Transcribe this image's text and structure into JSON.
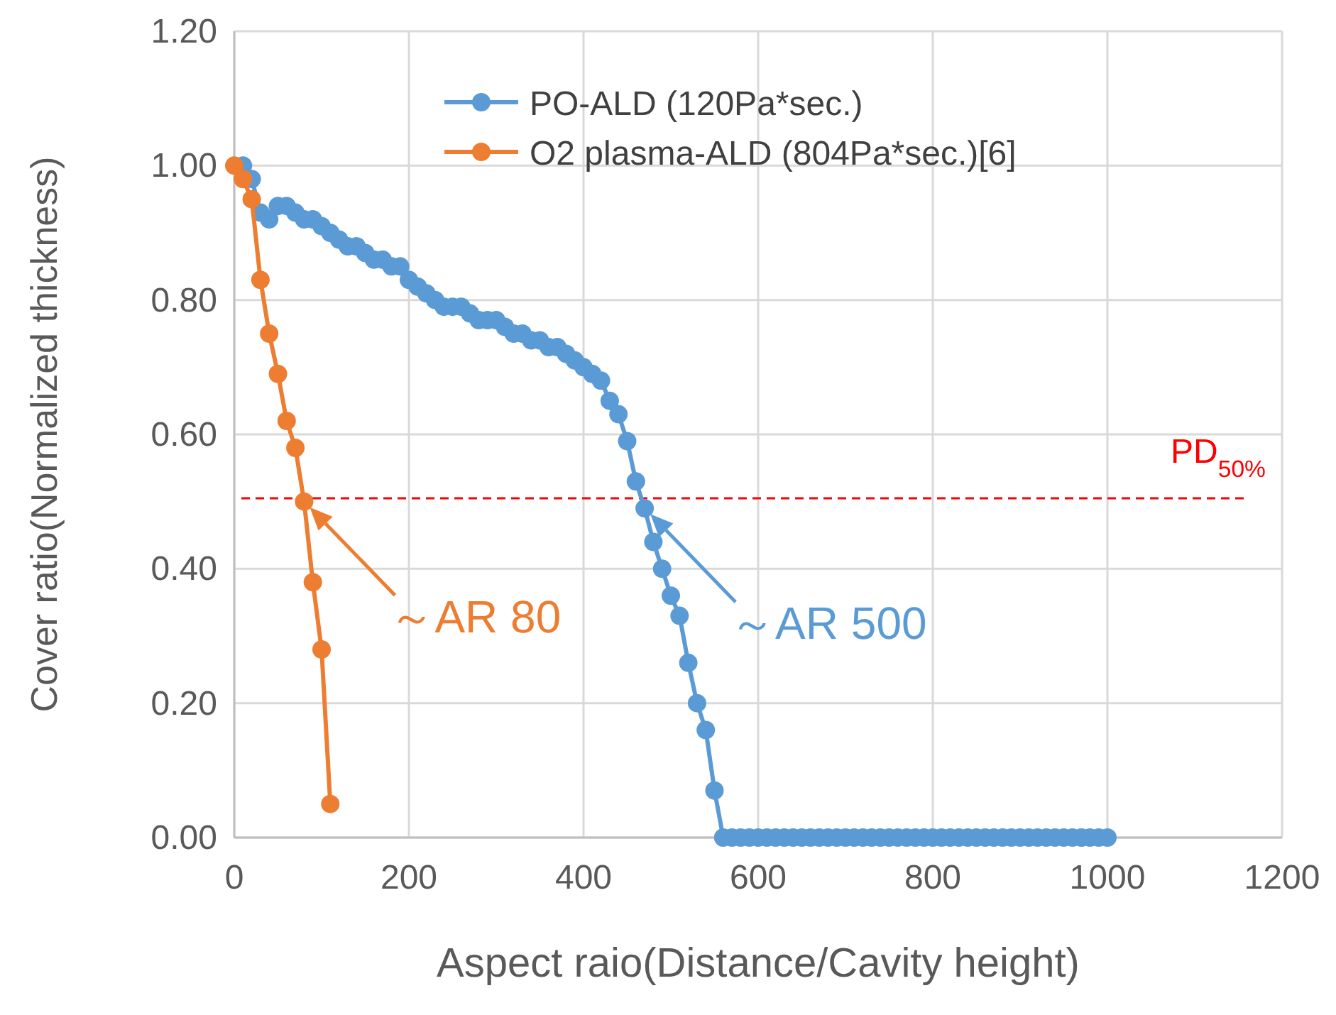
{
  "chart_data": {
    "type": "line",
    "xlabel": "Aspect raio(Distance/Cavity height)",
    "ylabel": "Cover ratio(Normalized thickness)",
    "xlim": [
      0,
      1200
    ],
    "xticks": [
      0,
      200,
      400,
      600,
      800,
      1000,
      1200
    ],
    "ylim": [
      0,
      1.2
    ],
    "yticks": [
      {
        "value": 0,
        "label": "0.00"
      },
      {
        "value": 0.2,
        "label": "0.20"
      },
      {
        "value": 0.4,
        "label": "0.40"
      },
      {
        "value": 0.6,
        "label": "0.60"
      },
      {
        "value": 0.8,
        "label": "0.80"
      },
      {
        "value": 1,
        "label": "1.00"
      },
      {
        "value": 1.2,
        "label": "1.20"
      }
    ],
    "grid": true,
    "legend": "top",
    "marker": "circle",
    "line_style": "solid",
    "series": [
      {
        "name": "PO-ALD (120Pa*sec.)",
        "color": "#5b9bd5",
        "x": [
          10,
          20,
          30,
          40,
          50,
          60,
          70,
          80,
          90,
          100,
          110,
          120,
          130,
          140,
          150,
          160,
          170,
          180,
          190,
          200,
          210,
          220,
          230,
          240,
          250,
          260,
          270,
          280,
          290,
          300,
          310,
          320,
          330,
          340,
          350,
          360,
          370,
          380,
          390,
          400,
          410,
          420,
          430,
          440,
          450,
          460,
          470,
          480,
          490,
          500,
          510,
          520,
          530,
          540,
          550,
          560,
          570,
          580,
          590,
          600,
          610,
          620,
          630,
          640,
          650,
          660,
          670,
          680,
          690,
          700,
          710,
          720,
          730,
          740,
          750,
          760,
          770,
          780,
          790,
          800,
          810,
          820,
          830,
          840,
          850,
          860,
          870,
          880,
          890,
          900,
          910,
          920,
          930,
          940,
          950,
          960,
          970,
          980,
          990,
          1000
        ],
        "values": [
          1.0,
          0.98,
          0.93,
          0.92,
          0.94,
          0.94,
          0.93,
          0.92,
          0.92,
          0.91,
          0.9,
          0.89,
          0.88,
          0.88,
          0.87,
          0.86,
          0.86,
          0.85,
          0.85,
          0.83,
          0.82,
          0.81,
          0.8,
          0.79,
          0.79,
          0.79,
          0.78,
          0.77,
          0.77,
          0.77,
          0.76,
          0.75,
          0.75,
          0.74,
          0.74,
          0.73,
          0.73,
          0.72,
          0.71,
          0.7,
          0.69,
          0.68,
          0.65,
          0.63,
          0.59,
          0.53,
          0.49,
          0.44,
          0.4,
          0.36,
          0.33,
          0.26,
          0.2,
          0.16,
          0.07,
          0,
          0,
          0,
          0,
          0,
          0,
          0,
          0,
          0,
          0,
          0,
          0,
          0,
          0,
          0,
          0,
          0,
          0,
          0,
          0,
          0,
          0,
          0,
          0,
          0,
          0,
          0,
          0,
          0,
          0,
          0,
          0,
          0,
          0,
          0,
          0,
          0,
          0,
          0,
          0,
          0,
          0,
          0,
          0,
          0
        ]
      },
      {
        "name": "O2 plasma-ALD (804Pa*sec.)[6]",
        "color": "#ed7d31",
        "x": [
          0,
          10,
          20,
          30,
          40,
          50,
          60,
          70,
          80,
          90,
          100,
          110
        ],
        "values": [
          1.0,
          0.98,
          0.95,
          0.83,
          0.75,
          0.69,
          0.62,
          0.58,
          0.5,
          0.38,
          0.28,
          0.05
        ]
      }
    ],
    "ref_lines": [
      {
        "axis": "y",
        "value": 0.505,
        "label": "PD$_{50%}$",
        "color": "#ff0000",
        "line_style": "dashed"
      }
    ],
    "annotations": [
      {
        "text": "～AR 80",
        "x": 80,
        "y": 0.5
      },
      {
        "text": "～AR 500",
        "x": 470,
        "y": 0.49
      }
    ]
  }
}
